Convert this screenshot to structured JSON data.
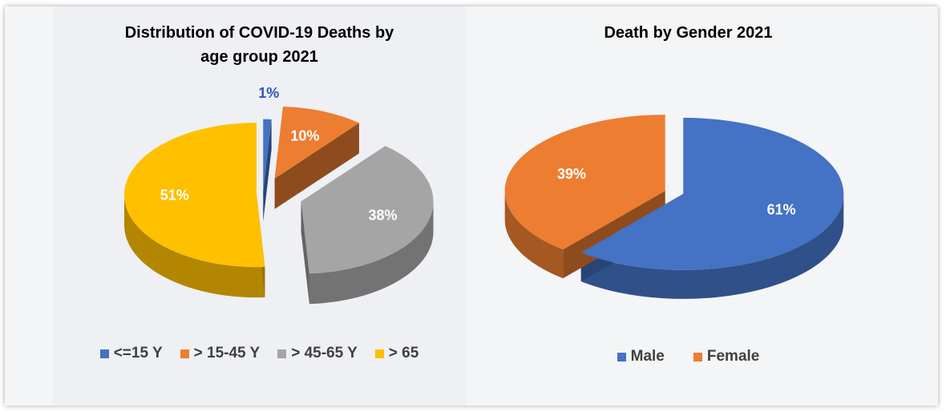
{
  "chart_data": [
    {
      "type": "pie",
      "title_line1": "Distribution of COVID-19 Deaths by",
      "title_line2": "age group 2021",
      "categories": [
        "<=15 Y",
        "> 15-45 Y",
        "> 45-65 Y",
        "> 65"
      ],
      "values": [
        1,
        10,
        38,
        51
      ],
      "labels": [
        "1%",
        "10%",
        "38%",
        "51%"
      ],
      "colors": [
        "#4472c4",
        "#ed7d31",
        "#a5a5a5",
        "#ffc000"
      ],
      "legend_position": "bottom"
    },
    {
      "type": "pie",
      "title": "Death by Gender 2021",
      "categories": [
        "Male",
        "Female"
      ],
      "values": [
        61,
        39
      ],
      "labels": [
        "61%",
        "39%"
      ],
      "colors": [
        "#4472c4",
        "#ed7d31"
      ],
      "legend_position": "bottom"
    }
  ]
}
